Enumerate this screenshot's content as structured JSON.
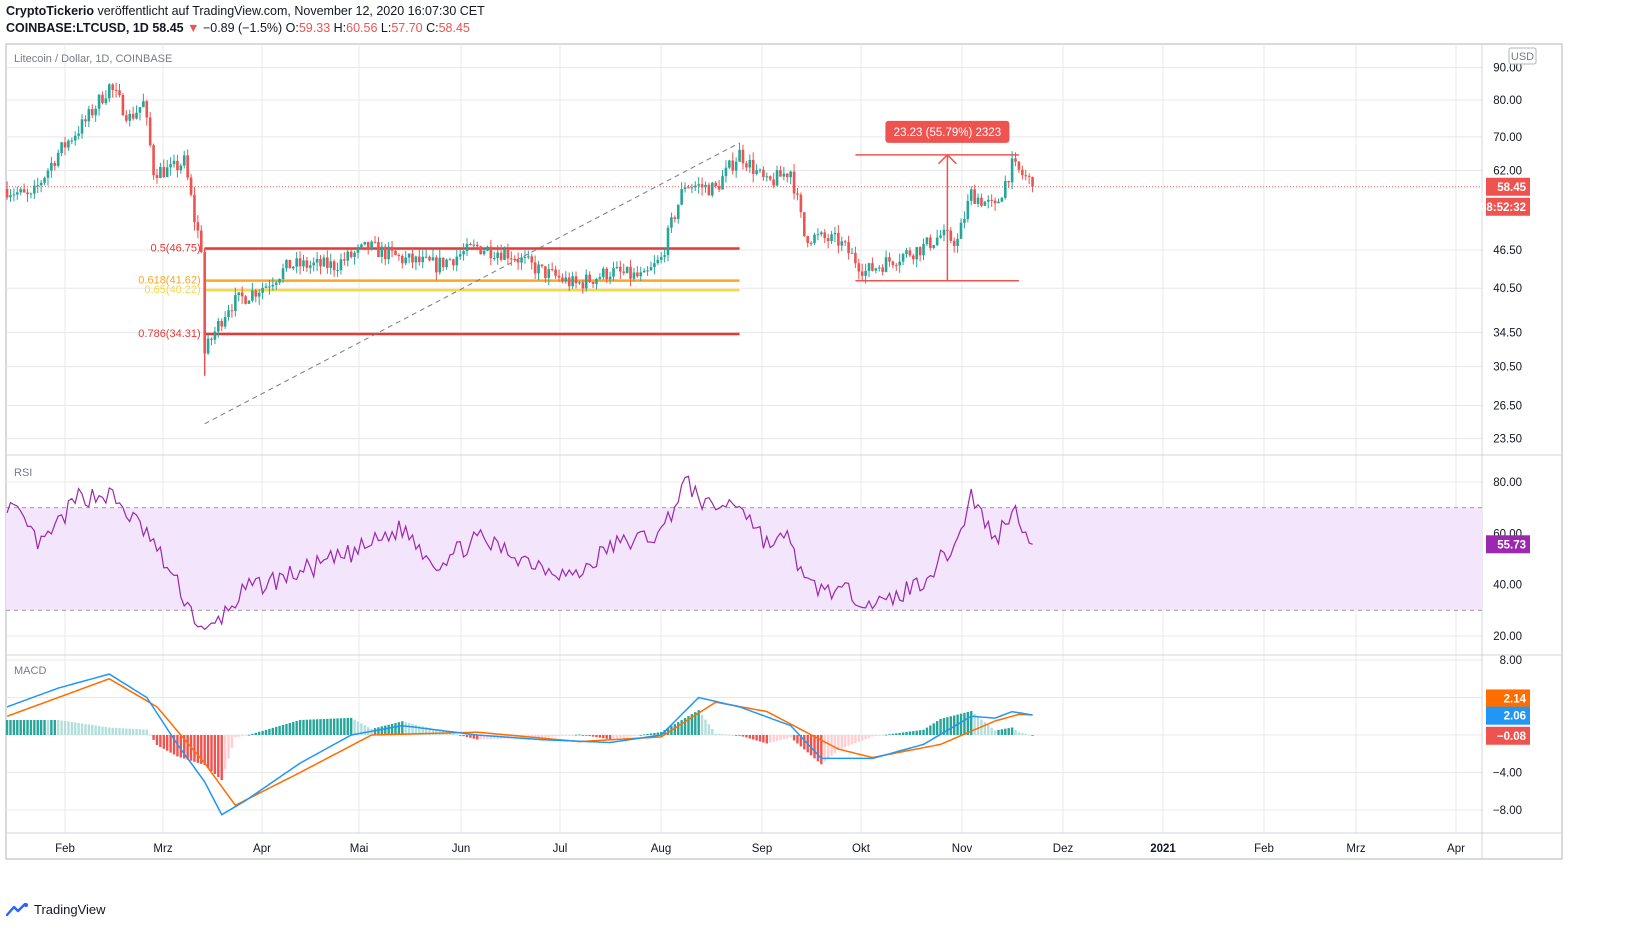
{
  "header": {
    "author": "CryptoTickerio",
    "published_text": "veröffentlicht auf TradingView.com, November 12, 2020 16:07:30 CET",
    "symbol": "COINBASE:LTCUSD, 1D",
    "last": "58.45",
    "change_arrow": "▼",
    "change": "−0.89 (−1.5%)",
    "o_label": "O:",
    "o_val": "59.33",
    "h_label": "H:",
    "h_val": "60.56",
    "l_label": "L:",
    "l_val": "57.70",
    "c_label": "C:",
    "c_val": "58.45"
  },
  "main_panel": {
    "label": "Litecoin / Dollar, 1D, COINBASE",
    "currency": "USD",
    "price_ticks": [
      "90.00",
      "80.00",
      "70.00",
      "62.00",
      "46.50",
      "40.50",
      "34.50",
      "30.50",
      "26.50",
      "23.50"
    ],
    "last_price_badge": "58.45",
    "countdown_badge": "08:52:32",
    "measure_label": "23.23 (55.79%) 2323",
    "fib_levels": [
      {
        "label": "0.5(46.75)",
        "value": 46.75,
        "color": "#e53935"
      },
      {
        "label": "0.618(41.62)",
        "value": 41.62,
        "color": "#f9a825"
      },
      {
        "label": "0.65(40.22)",
        "value": 40.22,
        "color": "#fdd835"
      },
      {
        "label": "0.786(34.31)",
        "value": 34.31,
        "color": "#e53935"
      }
    ]
  },
  "rsi_panel": {
    "label": "RSI",
    "ticks": [
      "80.00",
      "60.00",
      "40.00",
      "20.00"
    ],
    "value_badge": "55.73",
    "upper_band": 70,
    "lower_band": 30
  },
  "macd_panel": {
    "label": "MACD",
    "ticks": [
      "8.00",
      "−4.00",
      "−8.00"
    ],
    "signal_badge": "2.14",
    "macd_badge": "2.06",
    "hist_badge": "−0.08"
  },
  "x_axis": {
    "labels": [
      "Feb",
      "Mrz",
      "Apr",
      "Mai",
      "Jun",
      "Jul",
      "Aug",
      "Sep",
      "Okt",
      "Nov",
      "Dez",
      "2021",
      "Feb",
      "Mrz",
      "Apr"
    ]
  },
  "footer": {
    "brand": "TradingView"
  },
  "colors": {
    "up": "#26a69a",
    "down": "#ef5350",
    "rsi": "#9c27b0",
    "rsi_band": "#f3e5fb",
    "macd": "#2196f3",
    "signal": "#ff6d00",
    "grid": "#e8e8ea"
  },
  "chart_data": [
    {
      "type": "candlestick",
      "title": "Litecoin / Dollar, 1D, COINBASE",
      "ylabel": "USD",
      "y_scale": "log",
      "ylim": [
        22,
        92
      ],
      "x_labels": [
        "Feb",
        "Mrz",
        "Apr",
        "Mai",
        "Jun",
        "Jul",
        "Aug",
        "Sep",
        "Okt",
        "Nov",
        "Dez",
        "2021",
        "Feb",
        "Mrz",
        "Apr"
      ],
      "close_path": [
        [
          "2020-01-15",
          58
        ],
        [
          "2020-01-22",
          56
        ],
        [
          "2020-01-30",
          66
        ],
        [
          "2020-02-07",
          74
        ],
        [
          "2020-02-14",
          84
        ],
        [
          "2020-02-20",
          75
        ],
        [
          "2020-02-24",
          79
        ],
        [
          "2020-02-27",
          62
        ],
        [
          "2020-03-03",
          62
        ],
        [
          "2020-03-07",
          64
        ],
        [
          "2020-03-10",
          52
        ],
        [
          "2020-03-12",
          47
        ],
        [
          "2020-03-13",
          32
        ],
        [
          "2020-03-20",
          38
        ],
        [
          "2020-03-31",
          41
        ],
        [
          "2020-04-07",
          44
        ],
        [
          "2020-04-20",
          44
        ],
        [
          "2020-04-30",
          47
        ],
        [
          "2020-05-10",
          45
        ],
        [
          "2020-05-20",
          44
        ],
        [
          "2020-06-01",
          47
        ],
        [
          "2020-06-10",
          46
        ],
        [
          "2020-06-20",
          43
        ],
        [
          "2020-06-30",
          41
        ],
        [
          "2020-07-10",
          43
        ],
        [
          "2020-07-20",
          42
        ],
        [
          "2020-07-25",
          45
        ],
        [
          "2020-08-01",
          59
        ],
        [
          "2020-08-10",
          58
        ],
        [
          "2020-08-17",
          66
        ],
        [
          "2020-08-25",
          59
        ],
        [
          "2020-09-01",
          62
        ],
        [
          "2020-09-05",
          49
        ],
        [
          "2020-09-15",
          48
        ],
        [
          "2020-09-23",
          43
        ],
        [
          "2020-10-01",
          45
        ],
        [
          "2020-10-10",
          47
        ],
        [
          "2020-10-15",
          49
        ],
        [
          "2020-10-20",
          48
        ],
        [
          "2020-10-24",
          57
        ],
        [
          "2020-10-31",
          54
        ],
        [
          "2020-11-05",
          63
        ],
        [
          "2020-11-12",
          58.45
        ]
      ]
    },
    {
      "type": "line",
      "title": "RSI",
      "ylim": [
        15,
        85
      ],
      "series": [
        {
          "values_by_date": [
            [
              "2020-01-15",
              72
            ],
            [
              "2020-01-25",
              55
            ],
            [
              "2020-02-05",
              74
            ],
            [
              "2020-02-14",
              75
            ],
            [
              "2020-02-25",
              60
            ],
            [
              "2020-03-05",
              40
            ],
            [
              "2020-03-13",
              20
            ],
            [
              "2020-03-25",
              38
            ],
            [
              "2020-04-10",
              45
            ],
            [
              "2020-04-25",
              52
            ],
            [
              "2020-05-10",
              62
            ],
            [
              "2020-05-20",
              48
            ],
            [
              "2020-06-01",
              58
            ],
            [
              "2020-06-15",
              50
            ],
            [
              "2020-06-30",
              43
            ],
            [
              "2020-07-10",
              55
            ],
            [
              "2020-07-25",
              60
            ],
            [
              "2020-08-01",
              80
            ],
            [
              "2020-08-08",
              70
            ],
            [
              "2020-08-17",
              72
            ],
            [
              "2020-08-25",
              56
            ],
            [
              "2020-09-01",
              58
            ],
            [
              "2020-09-05",
              40
            ],
            [
              "2020-09-20",
              36
            ],
            [
              "2020-09-28",
              32
            ],
            [
              "2020-10-10",
              42
            ],
            [
              "2020-10-20",
              57
            ],
            [
              "2020-10-24",
              75
            ],
            [
              "2020-10-31",
              57
            ],
            [
              "2020-11-05",
              70
            ],
            [
              "2020-11-12",
              55.73
            ]
          ]
        }
      ]
    },
    {
      "type": "line",
      "title": "MACD",
      "ylim": [
        -10,
        9
      ],
      "series": [
        {
          "values_by_date": [
            [
              "2020-01-15",
              3
            ],
            [
              "2020-01-30",
              5
            ],
            [
              "2020-02-14",
              6.5
            ],
            [
              "2020-02-25",
              4
            ],
            [
              "2020-03-05",
              -1
            ],
            [
              "2020-03-13",
              -5
            ],
            [
              "2020-03-18",
              -8.5
            ],
            [
              "2020-03-25",
              -7
            ],
            [
              "2020-04-10",
              -3
            ],
            [
              "2020-04-25",
              0
            ],
            [
              "2020-05-10",
              1
            ],
            [
              "2020-06-01",
              0
            ],
            [
              "2020-06-20",
              -0.5
            ],
            [
              "2020-07-10",
              -0.8
            ],
            [
              "2020-07-25",
              0
            ],
            [
              "2020-08-05",
              4
            ],
            [
              "2020-08-17",
              3
            ],
            [
              "2020-09-01",
              1
            ],
            [
              "2020-09-10",
              -2.5
            ],
            [
              "2020-09-25",
              -2.5
            ],
            [
              "2020-10-10",
              -1
            ],
            [
              "2020-10-24",
              2
            ],
            [
              "2020-10-31",
              1.8
            ],
            [
              "2020-11-05",
              2.5
            ],
            [
              "2020-11-12",
              2.06
            ]
          ]
        },
        {
          "values_by_date": [
            [
              "2020-01-15",
              2
            ],
            [
              "2020-02-14",
              6
            ],
            [
              "2020-02-28",
              3
            ],
            [
              "2020-03-13",
              -3
            ],
            [
              "2020-03-22",
              -7.5
            ],
            [
              "2020-04-10",
              -4
            ],
            [
              "2020-05-01",
              0
            ],
            [
              "2020-06-01",
              0.3
            ],
            [
              "2020-07-01",
              -0.7
            ],
            [
              "2020-07-25",
              -0.2
            ],
            [
              "2020-08-10",
              3.5
            ],
            [
              "2020-08-25",
              2.5
            ],
            [
              "2020-09-15",
              -1.5
            ],
            [
              "2020-09-25",
              -2.4
            ],
            [
              "2020-10-15",
              -1
            ],
            [
              "2020-10-31",
              1.5
            ],
            [
              "2020-11-07",
              2.2
            ],
            [
              "2020-11-12",
              2.14
            ]
          ]
        }
      ]
    }
  ]
}
